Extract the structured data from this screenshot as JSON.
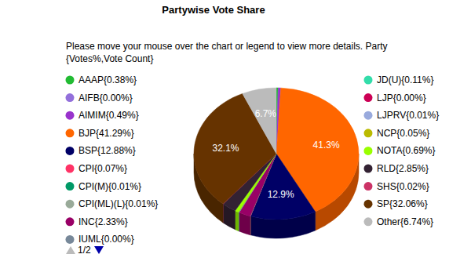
{
  "chart_data": {
    "type": "pie",
    "title": "Partywise Vote Share",
    "subtitle": [
      "Please move your mouse over the chart or legend to view more details. Party",
      "{Votes%,Vote Count}"
    ],
    "legend_page_label": "1/2",
    "categories": [
      "AAAP{0.38%}",
      "AIFB{0.00%}",
      "AIMIM{0.49%}",
      "BJP{41.29%}",
      "BSP{12.88%}",
      "CPI{0.07%}",
      "CPI(M){0.01%}",
      "CPI(ML)(L){0.01%}",
      "INC{2.33%}",
      "IUML{0.00%}",
      "JD(U){0.11%}",
      "LJP{0.00%}",
      "LJPRV{0.01%}",
      "NCP{0.05%}",
      "NOTA{0.69%}",
      "RLD{2.85%}",
      "SHS{0.02%}",
      "SP{32.06%}",
      "Other{6.74%}"
    ],
    "values": [
      0.38,
      0.0,
      0.49,
      41.29,
      12.88,
      0.07,
      0.01,
      0.01,
      2.33,
      0.0,
      0.11,
      0.0,
      0.01,
      0.05,
      0.69,
      2.85,
      0.02,
      32.06,
      6.74
    ],
    "value_labels": [
      null,
      null,
      null,
      "41.3%",
      "12.9%",
      null,
      null,
      null,
      null,
      null,
      null,
      null,
      null,
      null,
      null,
      null,
      null,
      "32.1%",
      "6.7%"
    ],
    "colors": [
      "#22bb33",
      "#9370db",
      "#9933cc",
      "#ff6600",
      "#000066",
      "#ff3366",
      "#009966",
      "#99aa99",
      "#990066",
      "#778899",
      "#33ddaa",
      "#cc0055",
      "#99aadd",
      "#bbbb00",
      "#99ff00",
      "#332233",
      "#cc3366",
      "#663300",
      "#bbbbbb"
    ],
    "data_labels": true
  }
}
